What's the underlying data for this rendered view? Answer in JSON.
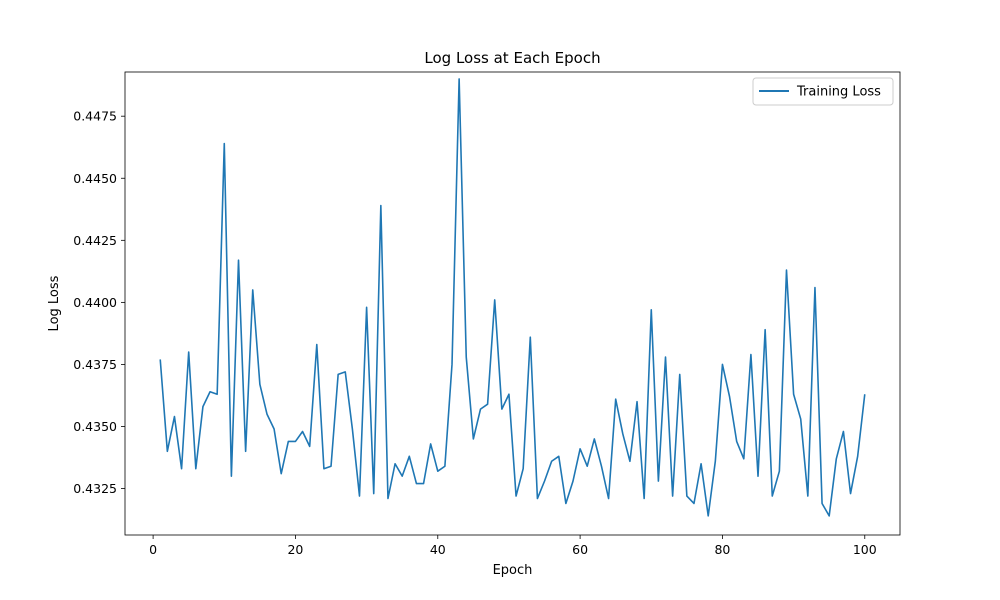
{
  "chart_data": {
    "type": "line",
    "title": "Log Loss at Each Epoch",
    "xlabel": "Epoch",
    "ylabel": "Log Loss",
    "xlim": [
      -3.95,
      104.95
    ],
    "ylim": [
      0.43063,
      0.44928
    ],
    "xticks": [
      0,
      20,
      40,
      60,
      80,
      100
    ],
    "yticks": [
      0.4325,
      0.435,
      0.4375,
      0.44,
      0.4425,
      0.445,
      0.4475
    ],
    "ytick_labels": [
      "0.4325",
      "0.4350",
      "0.4375",
      "0.4400",
      "0.4425",
      "0.4450",
      "0.4475"
    ],
    "legend_position": "top-right",
    "grid": false,
    "series": [
      {
        "name": "Training Loss",
        "color": "#1f77b4",
        "x": [
          1,
          2,
          3,
          4,
          5,
          6,
          7,
          8,
          9,
          10,
          11,
          12,
          13,
          14,
          15,
          16,
          17,
          18,
          19,
          20,
          21,
          22,
          23,
          24,
          25,
          26,
          27,
          28,
          29,
          30,
          31,
          32,
          33,
          34,
          35,
          36,
          37,
          38,
          39,
          40,
          41,
          42,
          43,
          44,
          45,
          46,
          47,
          48,
          49,
          50,
          51,
          52,
          53,
          54,
          55,
          56,
          57,
          58,
          59,
          60,
          61,
          62,
          63,
          64,
          65,
          66,
          67,
          68,
          69,
          70,
          71,
          72,
          73,
          74,
          75,
          76,
          77,
          78,
          79,
          80,
          81,
          82,
          83,
          84,
          85,
          86,
          87,
          88,
          89,
          90,
          91,
          92,
          93,
          94,
          95,
          96,
          97,
          98,
          99,
          100
        ],
        "values": [
          0.4377,
          0.434,
          0.4354,
          0.4333,
          0.438,
          0.4333,
          0.4358,
          0.4364,
          0.4363,
          0.4464,
          0.433,
          0.4417,
          0.434,
          0.4405,
          0.4367,
          0.4355,
          0.4349,
          0.4331,
          0.4344,
          0.4344,
          0.4348,
          0.4342,
          0.4383,
          0.4333,
          0.4334,
          0.4371,
          0.4372,
          0.4349,
          0.4322,
          0.4398,
          0.4323,
          0.4439,
          0.4321,
          0.4335,
          0.433,
          0.4338,
          0.4327,
          0.4327,
          0.4343,
          0.4332,
          0.4334,
          0.4375,
          0.449,
          0.4378,
          0.4345,
          0.4357,
          0.4359,
          0.4401,
          0.4357,
          0.4363,
          0.4322,
          0.4333,
          0.4386,
          0.4321,
          0.4328,
          0.4336,
          0.4338,
          0.4319,
          0.4328,
          0.4341,
          0.4334,
          0.4345,
          0.4334,
          0.4321,
          0.4361,
          0.4347,
          0.4336,
          0.436,
          0.4321,
          0.4397,
          0.4328,
          0.4378,
          0.4322,
          0.4371,
          0.4322,
          0.4319,
          0.4335,
          0.4314,
          0.4336,
          0.4375,
          0.4362,
          0.4344,
          0.4337,
          0.4379,
          0.433,
          0.4389,
          0.4322,
          0.4332,
          0.4413,
          0.4363,
          0.4353,
          0.4322,
          0.4406,
          0.4319,
          0.4314,
          0.4337,
          0.4348,
          0.4323,
          0.4338,
          0.4363
        ]
      }
    ]
  }
}
